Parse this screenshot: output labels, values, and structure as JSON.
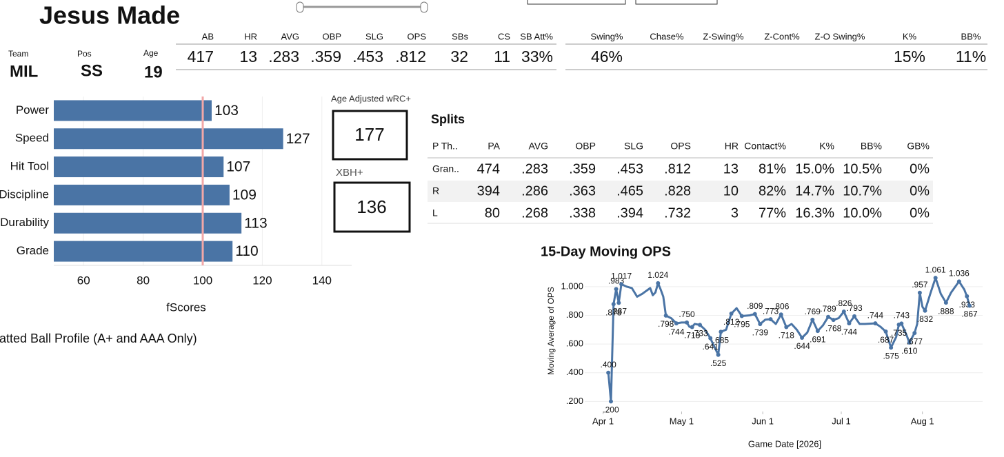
{
  "header": {
    "name": "Jesus Made",
    "team_label": "Team",
    "team": "MIL",
    "pos_label": "Pos",
    "pos": "SS",
    "age_label": "Age",
    "age": "19"
  },
  "stats": {
    "headers": [
      "AB",
      "HR",
      "AVG",
      "OBP",
      "SLG",
      "OPS",
      "SBs",
      "CS",
      "SB Att%"
    ],
    "values": [
      "417",
      "13",
      ".283",
      ".359",
      ".453",
      ".812",
      "32",
      "11",
      "33%"
    ]
  },
  "plate_discipline": {
    "headers": [
      "Swing%",
      "Chase%",
      "Z-Swing%",
      "Z-Cont%",
      "Z-O Swing%",
      "K%",
      "BB%"
    ],
    "values": [
      "46%",
      null,
      null,
      null,
      null,
      "15%",
      "11%"
    ]
  },
  "boxes": [
    {
      "title": "Age Adjusted wRC+",
      "value": "177"
    },
    {
      "title": "XBH+",
      "value": "136"
    }
  ],
  "splits": {
    "title": "Splits",
    "headers": [
      "P Th..",
      "PA",
      "AVG",
      "OBP",
      "SLG",
      "OPS",
      "HR",
      "Contact%",
      "K%",
      "BB%",
      "GB%"
    ],
    "rows": [
      [
        "Gran..",
        "474",
        ".283",
        ".359",
        ".453",
        ".812",
        "13",
        "81%",
        "15.0%",
        "10.5%",
        "0%"
      ],
      [
        "R",
        "394",
        ".286",
        ".363",
        ".465",
        ".828",
        "10",
        "82%",
        "14.7%",
        "10.7%",
        "0%"
      ],
      [
        "L",
        "80",
        ".268",
        ".338",
        ".394",
        ".732",
        "3",
        "77%",
        "16.3%",
        "10.0%",
        "0%"
      ]
    ]
  },
  "batted_ball_title": "atted Ball Profile (A+ and AAA Only)",
  "chart_data": [
    {
      "type": "bar",
      "orientation": "horizontal",
      "categories": [
        "Power",
        "Speed",
        "Hit Tool",
        "Discipline",
        "Durability",
        "Grade"
      ],
      "values": [
        103,
        127,
        107,
        109,
        113,
        110
      ],
      "color": "#4a74a5",
      "xlim": [
        50,
        150
      ],
      "xticks": [
        60,
        80,
        100,
        120,
        140
      ],
      "x_label": "fScores",
      "grid": true,
      "reference_line": {
        "value": 100,
        "color": "#f2a7a7"
      }
    },
    {
      "type": "line",
      "title": "15-Day Moving OPS",
      "x_label": "Game Date [2026]",
      "y_label": "Moving Average of OPS",
      "color": "#4a74a5",
      "grid": true,
      "xlim": [
        "2026-03-25",
        "2026-08-24"
      ],
      "xticks": [
        {
          "value": "2026-04-01",
          "label": "Apr 1"
        },
        {
          "value": "2026-05-01",
          "label": "May 1"
        },
        {
          "value": "2026-06-01",
          "label": "Jun 1"
        },
        {
          "value": "2026-07-01",
          "label": "Jul 1"
        },
        {
          "value": "2026-08-01",
          "label": "Aug 1"
        }
      ],
      "ylim": [
        0.13,
        1.1
      ],
      "yticks": [
        {
          "value": 0.2,
          "label": ".200"
        },
        {
          "value": 0.4,
          "label": ".400"
        },
        {
          "value": 0.6,
          "label": ".600"
        },
        {
          "value": 0.8,
          "label": ".800"
        },
        {
          "value": 1,
          "label": "1.000"
        }
      ],
      "x": [
        "2026-04-03",
        "2026-04-04",
        "2026-04-05",
        "2026-04-06",
        "2026-04-07",
        "2026-04-08",
        "2026-04-10",
        "2026-04-12",
        "2026-04-14",
        "2026-04-16",
        "2026-04-19",
        "2026-04-20",
        "2026-04-21",
        "2026-04-22",
        "2026-04-23",
        "2026-04-24",
        "2026-04-25",
        "2026-04-27",
        "2026-04-29",
        "2026-05-01",
        "2026-05-03",
        "2026-05-04",
        "2026-05-05",
        "2026-05-06",
        "2026-05-08",
        "2026-05-10",
        "2026-05-12",
        "2026-05-13",
        "2026-05-15",
        "2026-05-16",
        "2026-05-18",
        "2026-05-20",
        "2026-05-22",
        "2026-05-24",
        "2026-05-27",
        "2026-05-29",
        "2026-05-31",
        "2026-06-02",
        "2026-06-04",
        "2026-06-06",
        "2026-06-08",
        "2026-06-10",
        "2026-06-12",
        "2026-06-14",
        "2026-06-16",
        "2026-06-18",
        "2026-06-20",
        "2026-06-22",
        "2026-06-24",
        "2026-06-26",
        "2026-06-28",
        "2026-06-30",
        "2026-07-02",
        "2026-07-04",
        "2026-07-06",
        "2026-07-08",
        "2026-07-10",
        "2026-07-14",
        "2026-07-16",
        "2026-07-18",
        "2026-07-20",
        "2026-07-22",
        "2026-07-23",
        "2026-07-24",
        "2026-07-26",
        "2026-07-27",
        "2026-07-29",
        "2026-07-30",
        "2026-07-31",
        "2026-08-01",
        "2026-08-02",
        "2026-08-04",
        "2026-08-06",
        "2026-08-08",
        "2026-08-10",
        "2026-08-12",
        "2026-08-15",
        "2026-08-17",
        "2026-08-18",
        "2026-08-19"
      ],
      "values": [
        0.4,
        0.2,
        0.878,
        0.983,
        0.887,
        1.017,
        1.0,
        0.99,
        0.93,
        0.95,
        0.99,
        0.94,
        0.96,
        1.024,
        0.98,
        0.93,
        0.798,
        0.78,
        0.744,
        0.75,
        0.75,
        0.72,
        0.718,
        0.74,
        0.733,
        0.7,
        0.641,
        0.6,
        0.525,
        0.685,
        0.7,
        0.812,
        0.85,
        0.795,
        0.8,
        0.809,
        0.739,
        0.77,
        0.773,
        0.74,
        0.806,
        0.718,
        0.74,
        0.7,
        0.644,
        0.68,
        0.769,
        0.691,
        0.73,
        0.789,
        0.768,
        0.78,
        0.826,
        0.744,
        0.793,
        0.74,
        0.74,
        0.744,
        0.72,
        0.687,
        0.575,
        0.65,
        0.735,
        0.743,
        0.66,
        0.61,
        0.677,
        0.74,
        0.957,
        0.86,
        0.832,
        0.95,
        1.061,
        0.95,
        0.888,
        0.96,
        1.036,
        0.98,
        0.933,
        0.867
      ],
      "value_labels": [
        ".400",
        ".200",
        ".878",
        ".983",
        ".887",
        "1.017",
        null,
        null,
        null,
        null,
        null,
        null,
        null,
        "1.024",
        null,
        null,
        ".798",
        null,
        ".744",
        null,
        ".750",
        null,
        ".718",
        null,
        ".733",
        null,
        ".641",
        null,
        ".525",
        ".685",
        null,
        ".812",
        null,
        ".795",
        null,
        ".809",
        ".739",
        null,
        ".773",
        null,
        ".806",
        ".718",
        null,
        null,
        ".644",
        null,
        ".769",
        ".691",
        null,
        ".789",
        ".768",
        null,
        ".826",
        ".744",
        ".793",
        null,
        null,
        ".744",
        null,
        ".687",
        ".575",
        null,
        ".735",
        ".743",
        null,
        ".610",
        ".677",
        null,
        ".957",
        null,
        ".832",
        null,
        "1.061",
        null,
        ".888",
        null,
        "1.036",
        null,
        ".933",
        ".867"
      ]
    }
  ]
}
